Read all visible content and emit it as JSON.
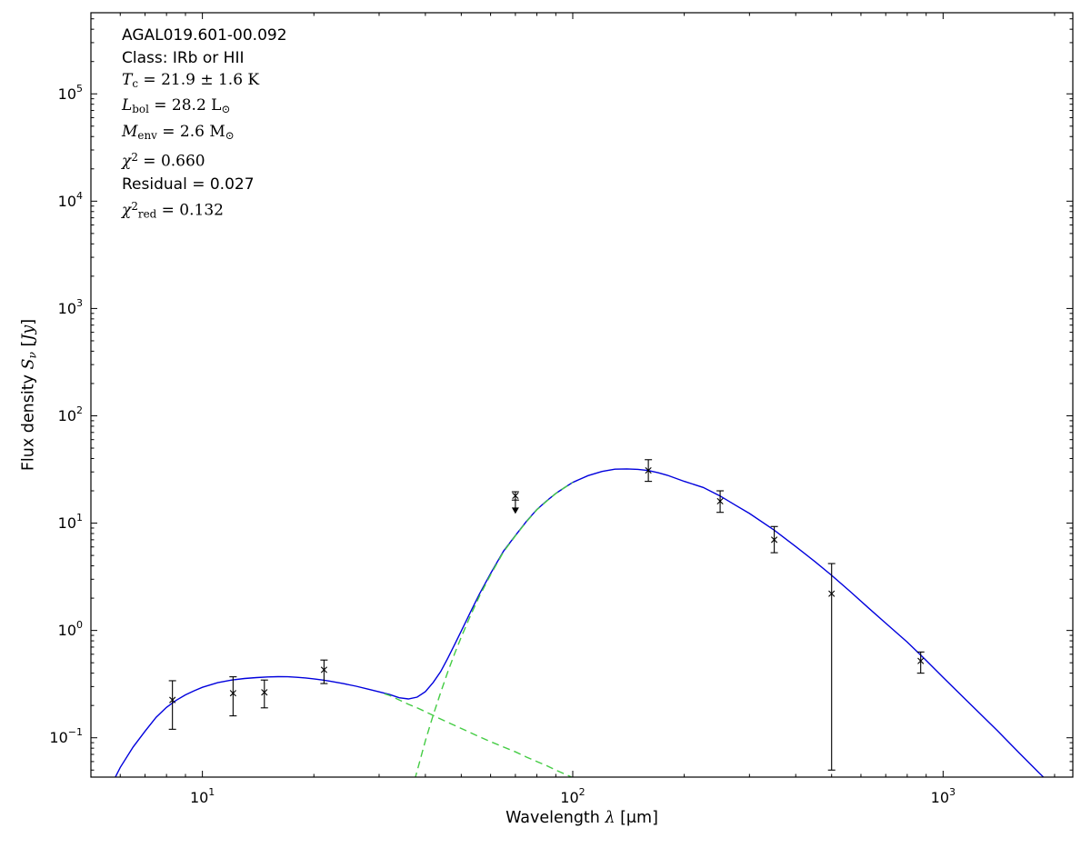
{
  "figure": {
    "background": "#ffffff",
    "annotations": [
      {
        "font": "sans",
        "parts": [
          {
            "t": "AGAL019.601-00.092"
          }
        ]
      },
      {
        "font": "sans",
        "parts": [
          {
            "t": "Class: IRb or HII"
          }
        ]
      },
      {
        "font": "math",
        "parts": [
          {
            "t": "T",
            "i": true
          },
          {
            "t": "c",
            "sub": true
          },
          {
            "t": " = 21.9 ± 1.6 K"
          }
        ]
      },
      {
        "font": "math",
        "parts": [
          {
            "t": "L",
            "i": true
          },
          {
            "t": "bol",
            "sub": true
          },
          {
            "t": " = 28.2 L"
          },
          {
            "t": "⊙",
            "sub": true
          }
        ]
      },
      {
        "font": "math",
        "parts": [
          {
            "t": "M",
            "i": true
          },
          {
            "t": "env",
            "sub": true
          },
          {
            "t": " = 2.6 M"
          },
          {
            "t": "⊙",
            "sub": true
          }
        ]
      },
      {
        "font": "math",
        "parts": [
          {
            "t": "χ",
            "i": true
          },
          {
            "t": "2",
            "sup": true
          },
          {
            "t": " = 0.660"
          }
        ]
      },
      {
        "font": "sans",
        "parts": [
          {
            "t": "Residual = 0.027"
          }
        ]
      },
      {
        "font": "math",
        "parts": [
          {
            "t": "χ",
            "i": true
          },
          {
            "t": "2",
            "sup": true
          },
          {
            "t": "red",
            "sub": true
          },
          {
            "t": " = 0.132"
          }
        ]
      }
    ]
  },
  "chart_data": {
    "type": "line",
    "title": "",
    "xscale": "log",
    "yscale": "log",
    "xlim": [
      5,
      2240
    ],
    "ylim": [
      0.043,
      570000
    ],
    "x_major_ticks": [
      10,
      100,
      1000
    ],
    "y_major_ticks": [
      0.1,
      1,
      10,
      100,
      1000,
      10000,
      100000
    ],
    "grid": false,
    "legend": "none",
    "xlabel_parts": [
      {
        "t": "Wavelength "
      },
      {
        "t": "λ",
        "i": true,
        "srf": true
      },
      {
        "t": " [μm]"
      }
    ],
    "ylabel_parts": [
      {
        "t": "Flux density "
      },
      {
        "t": "S",
        "i": true,
        "srf": true
      },
      {
        "t": "ν",
        "i": true,
        "srf": true,
        "sub": true
      },
      {
        "t": " ["
      },
      {
        "t": "Jy",
        "i": true,
        "srf": true
      },
      {
        "t": "]"
      }
    ],
    "colors": {
      "fit": "#0000dd",
      "components": "#44cc44",
      "data": "#000000"
    },
    "series": [
      {
        "name": "total-fit-curve",
        "style": "solid",
        "color": "#0000dd",
        "points": [
          [
            5.8,
            0.042
          ],
          [
            6,
            0.053
          ],
          [
            6.5,
            0.082
          ],
          [
            7,
            0.115
          ],
          [
            7.5,
            0.155
          ],
          [
            8,
            0.192
          ],
          [
            8.5,
            0.224
          ],
          [
            9,
            0.251
          ],
          [
            9.5,
            0.274
          ],
          [
            10,
            0.295
          ],
          [
            11,
            0.326
          ],
          [
            12,
            0.345
          ],
          [
            13,
            0.357
          ],
          [
            14,
            0.364
          ],
          [
            15,
            0.369
          ],
          [
            16,
            0.371
          ],
          [
            17,
            0.37
          ],
          [
            18,
            0.366
          ],
          [
            19,
            0.361
          ],
          [
            20,
            0.354
          ],
          [
            21,
            0.346
          ],
          [
            22,
            0.338
          ],
          [
            24,
            0.32
          ],
          [
            26,
            0.302
          ],
          [
            28,
            0.284
          ],
          [
            30,
            0.268
          ],
          [
            32,
            0.253
          ],
          [
            34,
            0.236
          ],
          [
            36,
            0.23
          ],
          [
            38,
            0.239
          ],
          [
            40,
            0.269
          ],
          [
            42,
            0.328
          ],
          [
            44,
            0.414
          ],
          [
            46,
            0.552
          ],
          [
            48,
            0.74
          ],
          [
            50,
            0.99
          ],
          [
            53,
            1.5
          ],
          [
            56,
            2.19
          ],
          [
            60,
            3.39
          ],
          [
            65,
            5.48
          ],
          [
            70,
            7.67
          ],
          [
            75,
            10.4
          ],
          [
            80,
            13.4
          ],
          [
            85,
            16.1
          ],
          [
            90,
            18.9
          ],
          [
            95,
            21.4
          ],
          [
            100,
            24.0
          ],
          [
            110,
            27.7
          ],
          [
            120,
            30.3
          ],
          [
            130,
            31.8
          ],
          [
            140,
            32.0
          ],
          [
            150,
            31.7
          ],
          [
            160,
            30.9
          ],
          [
            170,
            29.5
          ],
          [
            180,
            27.9
          ],
          [
            200,
            24.5
          ],
          [
            225,
            21.5
          ],
          [
            250,
            17.9
          ],
          [
            275,
            14.7
          ],
          [
            300,
            12.3
          ],
          [
            350,
            8.6
          ],
          [
            400,
            6.05
          ],
          [
            450,
            4.4
          ],
          [
            500,
            3.26
          ],
          [
            560,
            2.32
          ],
          [
            630,
            1.61
          ],
          [
            700,
            1.17
          ],
          [
            800,
            0.78
          ],
          [
            870,
            0.59
          ],
          [
            1000,
            0.365
          ],
          [
            1200,
            0.197
          ],
          [
            1400,
            0.117
          ],
          [
            1600,
            0.073
          ],
          [
            1800,
            0.0485
          ],
          [
            2000,
            0.034
          ],
          [
            2240,
            0.0224
          ]
        ]
      },
      {
        "name": "warm-component-curve",
        "style": "dashed",
        "color": "#44cc44",
        "points": [
          [
            31,
            0.257
          ],
          [
            32,
            0.248
          ],
          [
            34,
            0.225
          ],
          [
            36,
            0.205
          ],
          [
            38,
            0.19
          ],
          [
            40,
            0.175
          ],
          [
            43,
            0.155
          ],
          [
            46,
            0.139
          ],
          [
            50,
            0.122
          ],
          [
            55,
            0.105
          ],
          [
            60,
            0.092
          ],
          [
            65,
            0.082
          ],
          [
            70,
            0.074
          ],
          [
            75,
            0.066
          ],
          [
            80,
            0.06
          ],
          [
            85,
            0.055
          ],
          [
            90,
            0.05
          ],
          [
            95,
            0.046
          ],
          [
            100,
            0.0425
          ],
          [
            105,
            0.039
          ],
          [
            108,
            0.037
          ]
        ]
      },
      {
        "name": "cold-component-curve",
        "style": "dashed",
        "color": "#44cc44",
        "points": [
          [
            36,
            0.025
          ],
          [
            38,
            0.049
          ],
          [
            40,
            0.094
          ],
          [
            42,
            0.163
          ],
          [
            44,
            0.264
          ],
          [
            46,
            0.413
          ],
          [
            48,
            0.61
          ],
          [
            50,
            0.87
          ],
          [
            53,
            1.39
          ],
          [
            56,
            2.09
          ],
          [
            60,
            3.3
          ],
          [
            65,
            5.4
          ],
          [
            70,
            7.6
          ],
          [
            75,
            10.3
          ],
          [
            80,
            13.3
          ],
          [
            85,
            16.0
          ],
          [
            90,
            18.9
          ],
          [
            95,
            21.4
          ],
          [
            100,
            24.0
          ]
        ]
      }
    ],
    "data_points": [
      {
        "x": 8.3,
        "y": 0.225,
        "err_lo": 0.105,
        "err_hi": 0.115
      },
      {
        "x": 12.1,
        "y": 0.26,
        "err_lo": 0.1,
        "err_hi": 0.11
      },
      {
        "x": 14.7,
        "y": 0.265,
        "err_lo": 0.075,
        "err_hi": 0.08
      },
      {
        "x": 21.3,
        "y": 0.43,
        "err_lo": 0.11,
        "err_hi": 0.1
      },
      {
        "x": 70,
        "y": 18,
        "err_lo": 1.6,
        "err_hi": 1.6,
        "upper_limit": true
      },
      {
        "x": 160,
        "y": 31,
        "err_lo": 6.5,
        "err_hi": 8
      },
      {
        "x": 250,
        "y": 16,
        "err_lo": 3.4,
        "err_hi": 4
      },
      {
        "x": 350,
        "y": 7,
        "err_lo": 1.7,
        "err_hi": 2.3
      },
      {
        "x": 500,
        "y": 2.2,
        "err_lo": 2.15,
        "err_hi": 2.0
      },
      {
        "x": 870,
        "y": 0.52,
        "err_lo": 0.12,
        "err_hi": 0.11
      }
    ]
  }
}
